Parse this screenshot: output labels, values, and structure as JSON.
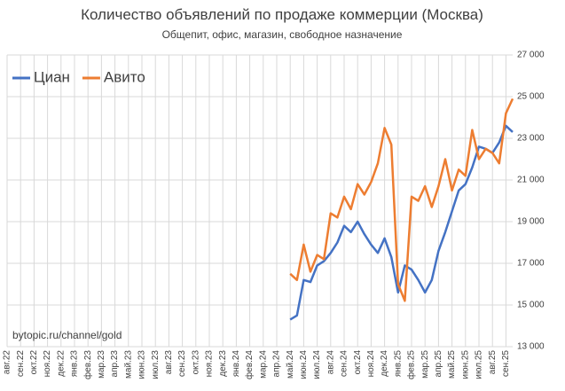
{
  "chart_data": {
    "type": "line",
    "title": "Количество объявлений по продаже коммерции (Москва)",
    "subtitle": "Общепит, офис, магазин, свободное назначение",
    "annotation": "bytopic.ru/channel/gold",
    "legend": "upper left",
    "grid": true,
    "categories": [
      "авг.22",
      null,
      "сен.22",
      null,
      "окт.22",
      null,
      "ноя.22",
      null,
      "дек.22",
      null,
      "янв.23",
      null,
      "фев.23",
      null,
      "мар.23",
      null,
      "апр.23",
      null,
      "май.23",
      null,
      "июн.23",
      null,
      "июл.23",
      null,
      "авг.23",
      null,
      "сен.23",
      null,
      "окт.23",
      null,
      "ноя.23",
      null,
      "дек.23",
      null,
      "янв.24",
      null,
      "фев.24",
      null,
      "мар.24",
      null,
      "апр.24",
      null,
      "май.24",
      null,
      "июн.24",
      null,
      "июл.24",
      null,
      "авг.24",
      null,
      "сен.24",
      null,
      "окт.24",
      null,
      "ноя.24",
      null,
      "дек.24",
      null,
      "янв.25",
      null,
      "фев.25",
      null,
      "мар.25",
      null,
      "апр.25",
      null,
      "май.25",
      null,
      "июн.25",
      null,
      "июл.25",
      null,
      "авг.25",
      null,
      "сен.25",
      null
    ],
    "series": [
      {
        "name": "Циан",
        "color": "#4472c4",
        "values": [
          null,
          null,
          null,
          null,
          null,
          null,
          null,
          null,
          null,
          null,
          null,
          null,
          null,
          null,
          null,
          null,
          null,
          null,
          null,
          null,
          null,
          null,
          null,
          null,
          null,
          null,
          null,
          null,
          null,
          null,
          null,
          null,
          null,
          null,
          null,
          null,
          null,
          null,
          null,
          null,
          null,
          null,
          14300,
          14500,
          16200,
          16100,
          16900,
          17100,
          17500,
          18000,
          18800,
          18500,
          19000,
          18400,
          17900,
          17500,
          18200,
          17300,
          15600,
          16900,
          16700,
          16200,
          15600,
          16200,
          17600,
          18500,
          19500,
          20500,
          20800,
          21600,
          22600,
          22500,
          22300,
          22800,
          23600,
          23300
        ]
      },
      {
        "name": "Авито",
        "color": "#ed7d31",
        "values": [
          null,
          null,
          null,
          null,
          null,
          null,
          null,
          null,
          null,
          null,
          null,
          null,
          null,
          null,
          null,
          null,
          null,
          null,
          null,
          null,
          null,
          null,
          null,
          null,
          null,
          null,
          null,
          null,
          null,
          null,
          null,
          null,
          null,
          null,
          null,
          null,
          null,
          null,
          null,
          null,
          null,
          null,
          16500,
          16200,
          17900,
          16600,
          17400,
          17200,
          19400,
          19200,
          20200,
          19600,
          20800,
          20300,
          20900,
          21800,
          23500,
          22700,
          16000,
          15200,
          20200,
          20000,
          20700,
          19700,
          20700,
          22000,
          20500,
          21500,
          21200,
          23400,
          22000,
          22500,
          22300,
          21800,
          24200,
          24900
        ]
      }
    ],
    "ylim": [
      13000,
      27000
    ],
    "yticks": [
      {
        "value": 13000,
        "label": "13 000"
      },
      {
        "value": 15000,
        "label": "15 000"
      },
      {
        "value": 17000,
        "label": "17 000"
      },
      {
        "value": 19000,
        "label": "19 000"
      },
      {
        "value": 21000,
        "label": "21 000"
      },
      {
        "value": 23000,
        "label": "23 000"
      },
      {
        "value": 25000,
        "label": "25 000"
      },
      {
        "value": 27000,
        "label": "27 000"
      }
    ]
  }
}
